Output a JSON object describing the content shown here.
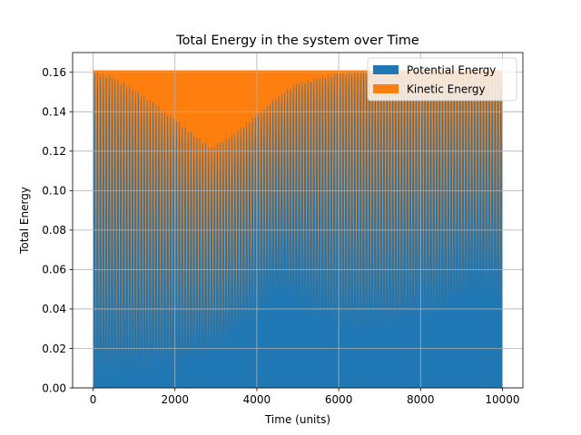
{
  "chart_data": {
    "type": "area",
    "title": "Total Energy in the system over Time",
    "xlabel": "Time (units)",
    "ylabel": "Total Energy",
    "xlim": [
      -500,
      10500
    ],
    "ylim": [
      0,
      0.17
    ],
    "xticks": [
      0,
      2000,
      4000,
      6000,
      8000,
      10000
    ],
    "xtick_labels": [
      "0",
      "2000",
      "4000",
      "6000",
      "8000",
      "10000"
    ],
    "yticks": [
      0.0,
      0.02,
      0.04,
      0.06,
      0.08,
      0.1,
      0.12,
      0.14,
      0.16
    ],
    "ytick_labels": [
      "0.00",
      "0.02",
      "0.04",
      "0.06",
      "0.08",
      "0.10",
      "0.12",
      "0.14",
      "0.16"
    ],
    "grid": true,
    "legend_position": "top-right",
    "x_range": [
      0,
      10000
    ],
    "total_energy": 0.161,
    "oscillations": 140,
    "series": [
      {
        "name": "Potential Energy",
        "color": "#1f77b4",
        "baseline_envelope": {
          "x": [
            0,
            1000,
            2000,
            3000,
            4000,
            4500,
            5000,
            5800,
            6500,
            7500,
            8500,
            9400,
            10000
          ],
          "min": [
            0.0,
            0.002,
            0.006,
            0.015,
            0.033,
            0.047,
            0.04,
            0.029,
            0.025,
            0.027,
            0.035,
            0.047,
            0.04
          ]
        }
      },
      {
        "name": "Kinetic Energy",
        "color": "#ff7f0e",
        "kinetic_envelope": {
          "x": [
            0,
            500,
            1500,
            2500,
            2900,
            3500,
            4500,
            5000,
            6000,
            7000,
            8000,
            9000,
            10000
          ],
          "min": [
            0.161,
            0.158,
            0.145,
            0.128,
            0.122,
            0.13,
            0.148,
            0.155,
            0.16,
            0.161,
            0.161,
            0.16,
            0.161
          ]
        }
      }
    ]
  }
}
